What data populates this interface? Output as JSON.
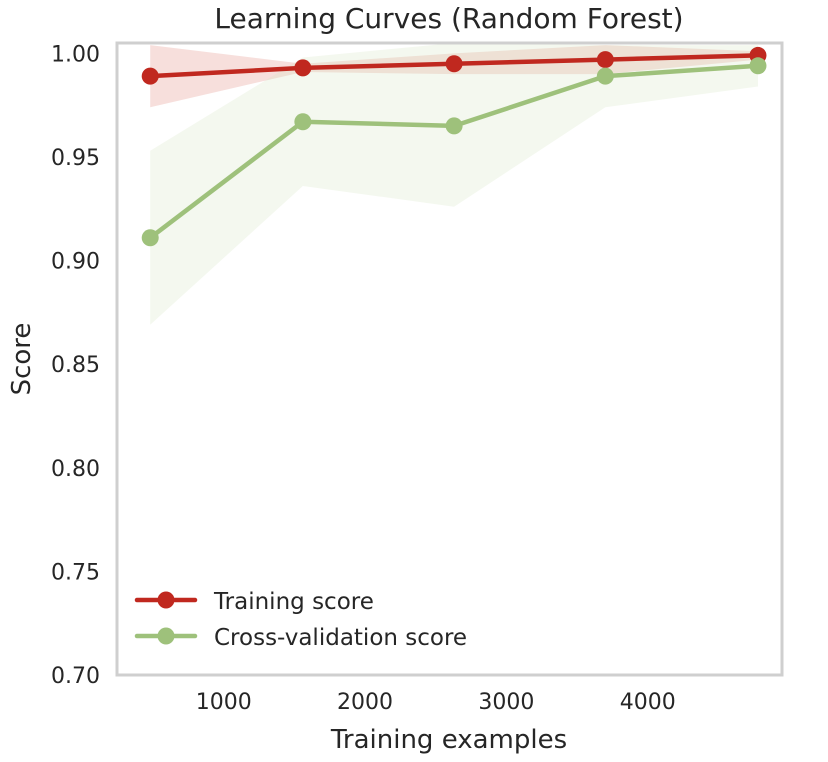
{
  "chart_data": {
    "type": "line",
    "title": "Learning Curves (Random Forest)",
    "xlabel": "Training examples",
    "ylabel": "Score",
    "xlim": [
      245,
      4950
    ],
    "ylim": [
      0.7,
      1.005
    ],
    "xticks": [
      1000,
      2000,
      3000,
      4000
    ],
    "yticks": [
      0.7,
      0.75,
      0.8,
      0.85,
      0.9,
      0.95,
      1.0
    ],
    "ytick_labels": [
      "0.70",
      "0.75",
      "0.80",
      "0.85",
      "0.90",
      "0.95",
      "1.00"
    ],
    "xtick_labels": [
      "1000",
      "2000",
      "3000",
      "4000"
    ],
    "grid": false,
    "legend_position": "lower-left",
    "x": [
      480,
      1560,
      2630,
      3700,
      4780
    ],
    "series": [
      {
        "name": "Training score",
        "color": "#c0281f",
        "band_color": "#e8a29c",
        "values": [
          0.989,
          0.993,
          0.995,
          0.997,
          0.999
        ],
        "lower": [
          0.974,
          0.991,
          0.99,
          0.99,
          0.997
        ],
        "upper": [
          1.004,
          0.995,
          1.0,
          1.004,
          1.001
        ]
      },
      {
        "name": "Cross-validation score",
        "color": "#9ec17b",
        "band_color": "#d6e6c6",
        "values": [
          0.911,
          0.967,
          0.965,
          0.989,
          0.994
        ],
        "lower": [
          0.869,
          0.936,
          0.926,
          0.974,
          0.984
        ],
        "upper": [
          0.953,
          0.998,
          1.005,
          1.004,
          1.004
        ]
      }
    ]
  }
}
